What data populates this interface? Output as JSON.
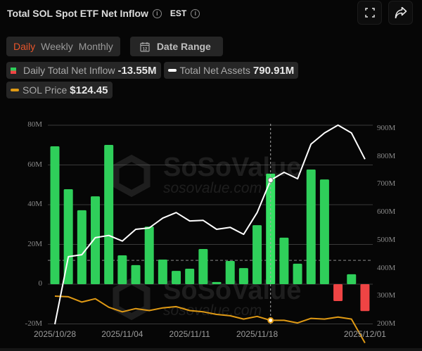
{
  "header": {
    "title": "Total SOL Spot ETF Net Inflow",
    "timezone": "EST",
    "fullscreen_icon": "fullscreen-icon",
    "share_icon": "share-icon"
  },
  "controls": {
    "periods": [
      "Daily",
      "Weekly",
      "Monthly"
    ],
    "active_period": "Daily",
    "date_range_label": "Date Range",
    "date_range_icon_text": "12"
  },
  "legend": {
    "inflow_label": "Daily Total Net Inflow",
    "inflow_value": "-13.55M",
    "assets_label": "Total Net Assets",
    "assets_value": "790.91M",
    "price_label": "SOL Price",
    "price_value": "$124.45"
  },
  "colors": {
    "positive": "#2fcf5a",
    "negative": "#ef4444",
    "assets_line": "#ffffff",
    "price_line": "#e09a14",
    "active_tab": "#e8552b"
  },
  "watermark": {
    "brand": "SoSoValue",
    "url": "sosovalue.com"
  },
  "chart_data": {
    "type": "bar",
    "title": "Total SOL Spot ETF Net Inflow",
    "categories": [
      "2025/10/28",
      "2025/10/29",
      "2025/10/30",
      "2025/10/31",
      "2025/11/03",
      "2025/11/04",
      "2025/11/05",
      "2025/11/06",
      "2025/11/07",
      "2025/11/10",
      "2025/11/11",
      "2025/11/12",
      "2025/11/13",
      "2025/11/14",
      "2025/11/17",
      "2025/11/18",
      "2025/11/19",
      "2025/11/20",
      "2025/11/21",
      "2025/11/24",
      "2025/11/25",
      "2025/11/26",
      "2025/11/28",
      "2025/12/01"
    ],
    "x_tick_labels": [
      "2025/10/28",
      "2025/11/04",
      "2025/11/11",
      "2025/11/18",
      "2025/12/01"
    ],
    "series": [
      {
        "name": "Daily Total Net Inflow",
        "type": "bar",
        "axis": "left",
        "unit": "M",
        "values": [
          69.4,
          47.8,
          37.2,
          44.2,
          70.1,
          14.5,
          9.6,
          29.0,
          12.4,
          6.7,
          7.8,
          17.7,
          1.1,
          11.7,
          8.1,
          29.7,
          55.6,
          23.4,
          10.3,
          57.7,
          52.7,
          -8.5,
          5.0,
          -13.55
        ]
      },
      {
        "name": "Total Net Assets",
        "type": "line",
        "axis": "right",
        "unit": "M",
        "values": [
          200,
          442,
          449,
          510,
          518,
          498,
          540,
          545,
          580,
          600,
          570,
          572,
          540,
          547,
          522,
          600,
          716,
          744,
          721,
          845,
          885,
          913,
          885,
          790.91
        ]
      },
      {
        "name": "SOL Price",
        "type": "line",
        "axis": "hidden",
        "unit": "$",
        "values": [
          196,
          195,
          187,
          192,
          179,
          172,
          177,
          174,
          178,
          180,
          174,
          172,
          168,
          166,
          161,
          165,
          159,
          159,
          155,
          162,
          161,
          164,
          161,
          124.45
        ]
      }
    ],
    "y_left": {
      "ticks": [
        "80M",
        "60M",
        "40M",
        "20M",
        "0",
        "-20M"
      ],
      "range": [
        -20,
        80
      ]
    },
    "y_right": {
      "ticks": [
        "900M",
        "800M",
        "700M",
        "600M",
        "500M",
        "400M",
        "300M",
        "200M"
      ],
      "range": [
        200,
        900
      ]
    },
    "grid": true,
    "hover_index": 16,
    "dashed_hline_y_left": 12
  }
}
